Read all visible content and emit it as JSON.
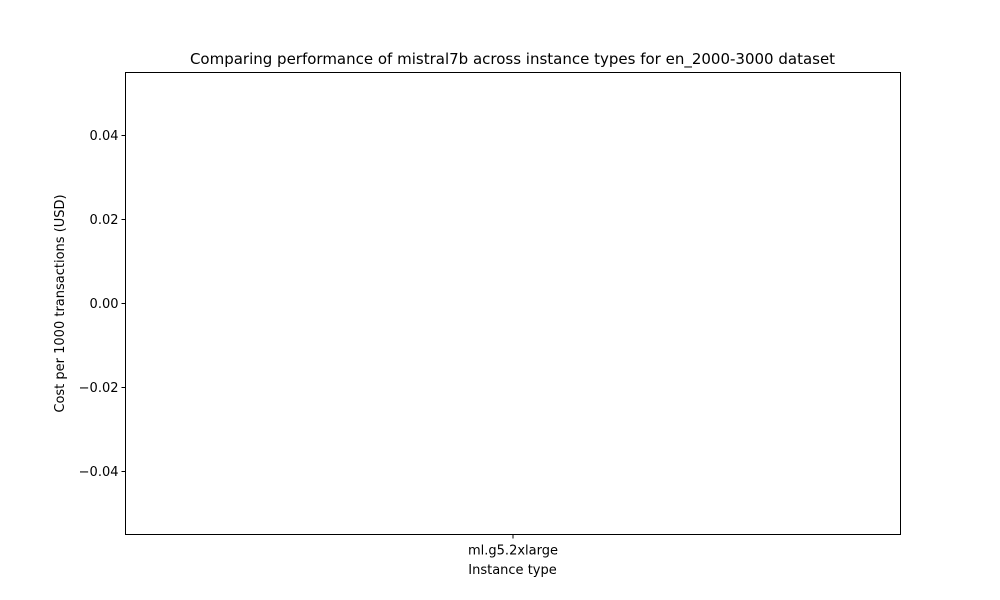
{
  "chart_data": {
    "type": "bar",
    "title": "Comparing performance of mistral7b across instance types for en_2000-3000 dataset",
    "xlabel": "Instance type",
    "ylabel": "Cost per 1000 transactions (USD)",
    "categories": [
      "ml.g5.2xlarge"
    ],
    "values": [
      0
    ],
    "ylim": [
      -0.055,
      0.055
    ],
    "yticks": [
      -0.04,
      -0.02,
      0.0,
      0.02,
      0.04
    ],
    "ytick_labels": [
      "−0.04",
      "−0.02",
      "0.00",
      "0.02",
      "0.04"
    ],
    "grid": false,
    "legend": "none"
  },
  "colors": {
    "axis": "#000000",
    "background": "#ffffff",
    "bar": "#1f77b4"
  }
}
